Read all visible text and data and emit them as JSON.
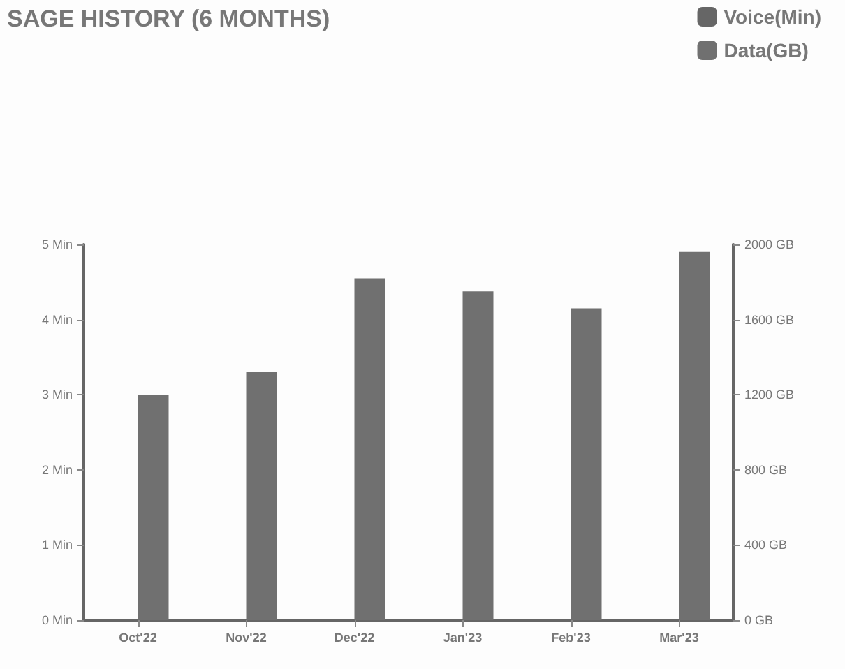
{
  "chart_data": {
    "type": "bar",
    "title": "SAGE HISTORY (6 MONTHS)",
    "categories": [
      "Oct'22",
      "Nov'22",
      "Dec'22",
      "Jan'23",
      "Feb'23",
      "Mar'23"
    ],
    "series": [
      {
        "name": "Voice(Min)",
        "color": "#666666",
        "values": [
          0,
          0,
          0,
          0,
          0,
          0
        ]
      },
      {
        "name": "Data(GB)",
        "color": "#707070",
        "axis": "y2",
        "values": [
          1200,
          1320,
          1820,
          1750,
          1660,
          1960
        ]
      }
    ],
    "ylim": [
      0,
      5
    ],
    "yticks": [
      {
        "value": 0,
        "label": "0 Min"
      },
      {
        "value": 1,
        "label": "1 Min"
      },
      {
        "value": 2,
        "label": "2 Min"
      },
      {
        "value": 3,
        "label": "3 Min"
      },
      {
        "value": 4,
        "label": "4 Min"
      },
      {
        "value": 5,
        "label": "5 Min"
      }
    ],
    "y2lim": [
      0,
      2000
    ],
    "y2ticks": [
      {
        "value": 0,
        "label": "0 GB"
      },
      {
        "value": 400,
        "label": "400 GB"
      },
      {
        "value": 800,
        "label": "800 GB"
      },
      {
        "value": 1200,
        "label": "1200 GB"
      },
      {
        "value": 1600,
        "label": "1600 GB"
      },
      {
        "value": 2000,
        "label": "2000 GB"
      }
    ],
    "grid": false,
    "legend": "top right"
  }
}
